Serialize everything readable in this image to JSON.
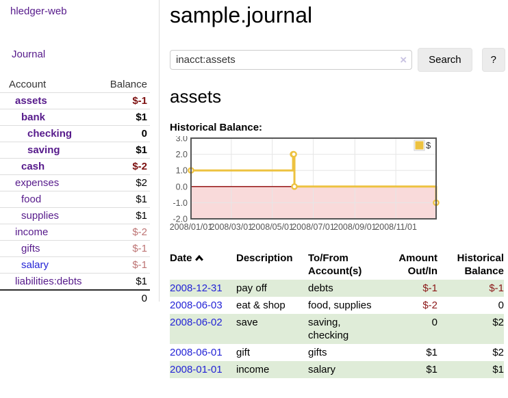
{
  "app_title": "hledger-web",
  "sidebar": {
    "journal_label": "Journal",
    "accounts": {
      "headers": [
        "Account",
        "Balance"
      ],
      "rows": [
        {
          "name": "assets",
          "balance": "$-1",
          "level": 1,
          "name_style": "strong",
          "bal_style": "strong-neg"
        },
        {
          "name": "bank",
          "balance": "$1",
          "level": 2,
          "name_style": "strong",
          "bal_style": "strong"
        },
        {
          "name": "checking",
          "balance": "0",
          "level": 3,
          "name_style": "strong",
          "bal_style": "strong"
        },
        {
          "name": "saving",
          "balance": "$1",
          "level": 3,
          "name_style": "strong",
          "bal_style": "strong"
        },
        {
          "name": "cash",
          "balance": "$-2",
          "level": 2,
          "name_style": "strong",
          "bal_style": "strong-neg"
        },
        {
          "name": "expenses",
          "balance": "$2",
          "level": 1,
          "name_style": "plain",
          "bal_style": "plain"
        },
        {
          "name": "food",
          "balance": "$1",
          "level": 2,
          "name_style": "plain",
          "bal_style": "plain"
        },
        {
          "name": "supplies",
          "balance": "$1",
          "level": 2,
          "name_style": "plain",
          "bal_style": "plain"
        },
        {
          "name": "income",
          "balance": "$-2",
          "level": 1,
          "name_style": "plain",
          "bal_style": "soft-neg"
        },
        {
          "name": "gifts",
          "balance": "$-1",
          "level": 2,
          "name_style": "plain",
          "bal_style": "soft-neg"
        },
        {
          "name": "salary",
          "balance": "$-1",
          "level": 2,
          "name_style": "blue",
          "bal_style": "soft-neg"
        },
        {
          "name": "liabilities:debts",
          "balance": "$1",
          "level": 1,
          "name_style": "plain",
          "bal_style": "plain"
        }
      ],
      "total": "0"
    }
  },
  "main": {
    "title": "sample.journal",
    "search": {
      "value": "inacct:assets",
      "clear_icon": "×",
      "button_label": "Search",
      "help_label": "?"
    },
    "account_heading": "assets",
    "chart_heading": "Historical Balance:",
    "register": {
      "columns": [
        "Date",
        "Description",
        "To/From Account(s)",
        "Amount Out/In",
        "Historical Balance"
      ],
      "sort": {
        "column": "Date",
        "icon": "chevron-up"
      },
      "rows": [
        {
          "date": "2008-12-31",
          "description": "pay off",
          "accounts": "debts",
          "amount": "$-1",
          "balance": "$-1",
          "amount_negative": true,
          "balance_negative": true
        },
        {
          "date": "2008-06-03",
          "description": "eat & shop",
          "accounts": "food, supplies",
          "amount": "$-2",
          "balance": "0",
          "amount_negative": true,
          "balance_negative": false
        },
        {
          "date": "2008-06-02",
          "description": "save",
          "accounts": "saving, checking",
          "amount": "0",
          "balance": "$2",
          "amount_negative": false,
          "balance_negative": false
        },
        {
          "date": "2008-06-01",
          "description": "gift",
          "accounts": "gifts",
          "amount": "$1",
          "balance": "$2",
          "amount_negative": false,
          "balance_negative": false
        },
        {
          "date": "2008-01-01",
          "description": "income",
          "accounts": "salary",
          "amount": "$1",
          "balance": "$1",
          "amount_negative": false,
          "balance_negative": false
        }
      ]
    }
  },
  "chart_data": {
    "type": "line",
    "title": "Historical Balance:",
    "step": true,
    "series": [
      {
        "name": "$",
        "points": [
          [
            "2008-01-01",
            1
          ],
          [
            "2008-06-01",
            2
          ],
          [
            "2008-06-02",
            2
          ],
          [
            "2008-06-03",
            0
          ],
          [
            "2008-12-31",
            -1
          ]
        ]
      }
    ],
    "x_range": [
      "2008-01-01",
      "2008-12-31"
    ],
    "x_ticks": [
      "2008/01/01",
      "2008/03/01",
      "2008/05/01",
      "2008/07/01",
      "2008/09/01",
      "2008/11/01"
    ],
    "y_ticks": [
      3.0,
      2.0,
      1.0,
      0.0,
      -1.0,
      -2.0
    ],
    "ylim": [
      -2,
      3
    ],
    "grid": true,
    "legend_position": "top-right",
    "colors": {
      "series": "#edc240",
      "negative_region_fill": "#f9dada",
      "zero_line": "#8b0000",
      "grid": "#e6e6e6",
      "border": "#545454",
      "tick_label": "#545454"
    }
  },
  "colors": {
    "purple_link": "#561a8b",
    "blue_link": "#2323d6",
    "negative_strong": "#7d1111",
    "negative_soft": "#bd7474",
    "negative": "#8b1717",
    "row_stripe": "#dfecd8"
  }
}
